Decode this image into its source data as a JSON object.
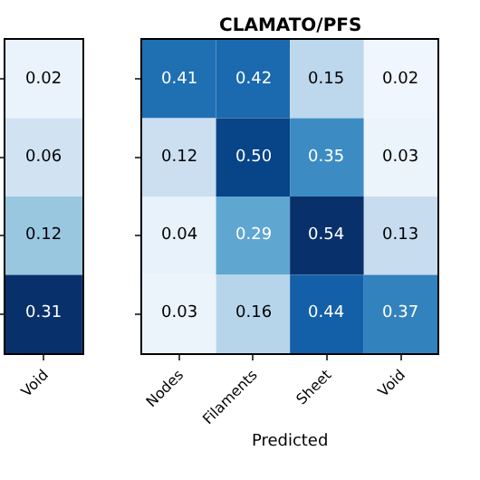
{
  "chart_data": [
    {
      "type": "heatmap",
      "categories": [
        "Void"
      ],
      "y_categories": [
        null,
        null,
        null,
        null
      ],
      "cells": [
        [
          0.02
        ],
        [
          0.06
        ],
        [
          0.12
        ],
        [
          0.31
        ]
      ],
      "cell_labels": [
        [
          "0.02"
        ],
        [
          "0.06"
        ],
        [
          "0.12"
        ],
        [
          "0.31"
        ]
      ],
      "data_labels": true,
      "tick_labels": "x"
    },
    {
      "type": "heatmap",
      "title": "CLAMATO/PFS",
      "xlabel": "Predicted",
      "categories": [
        "Nodes",
        "Filaments",
        "Sheet",
        "Void"
      ],
      "y_categories": [
        null,
        null,
        null,
        null
      ],
      "cells": [
        [
          0.41,
          0.42,
          0.15,
          0.02
        ],
        [
          0.12,
          0.5,
          0.35,
          0.03
        ],
        [
          0.04,
          0.29,
          0.54,
          0.13
        ],
        [
          0.03,
          0.16,
          0.44,
          0.37
        ]
      ],
      "cell_labels": [
        [
          "0.41",
          "0.42",
          "0.15",
          "0.02"
        ],
        [
          "0.12",
          "0.50",
          "0.35",
          "0.03"
        ],
        [
          "0.04",
          "0.29",
          "0.54",
          "0.13"
        ],
        [
          "0.03",
          "0.16",
          "0.44",
          "0.37"
        ]
      ],
      "data_labels": true,
      "tick_labels": "x"
    }
  ]
}
